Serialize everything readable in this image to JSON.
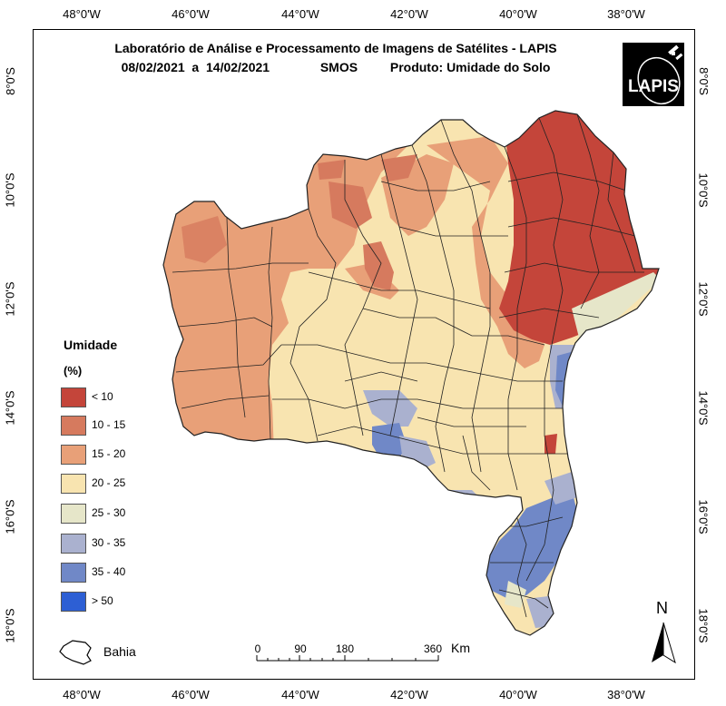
{
  "title": {
    "line1": "Laboratório de Análise e Processamento de Imagens de Satélites - LAPIS",
    "date_range": "08/02/2021  a  14/02/2021",
    "sensor": "SMOS",
    "product": "Produto: Umidade do Solo"
  },
  "logo": {
    "text": "LAPIS",
    "icon": "satellite-icon"
  },
  "axes": {
    "longitude_ticks": [
      "48°0'W",
      "46°0'W",
      "44°0'W",
      "42°0'W",
      "40°0'W",
      "38°0'W"
    ],
    "latitude_ticks": [
      "8°0'S",
      "10°0'S",
      "12°0'S",
      "14°0'S",
      "16°0'S",
      "18°0'S"
    ]
  },
  "legend": {
    "title": "Umidade",
    "unit": "(%)",
    "classes": [
      {
        "label": "< 10",
        "color": "#c4453a"
      },
      {
        "label": "10 - 15",
        "color": "#d67a5e"
      },
      {
        "label": "15 - 20",
        "color": "#e8a078"
      },
      {
        "label": "20 - 25",
        "color": "#f8e4b0"
      },
      {
        "label": "25 - 30",
        "color": "#e6e6c9"
      },
      {
        "label": "30 - 35",
        "color": "#aab1cf"
      },
      {
        "label": "35 - 40",
        "color": "#7088c7"
      },
      {
        "label": "> 50",
        "color": "#2d5fd4"
      }
    ]
  },
  "inset": {
    "label": "Bahia"
  },
  "scale_bar": {
    "ticks": [
      "0",
      "90",
      "180",
      "360"
    ],
    "unit": "Km"
  },
  "north_arrow": {
    "label": "N"
  }
}
